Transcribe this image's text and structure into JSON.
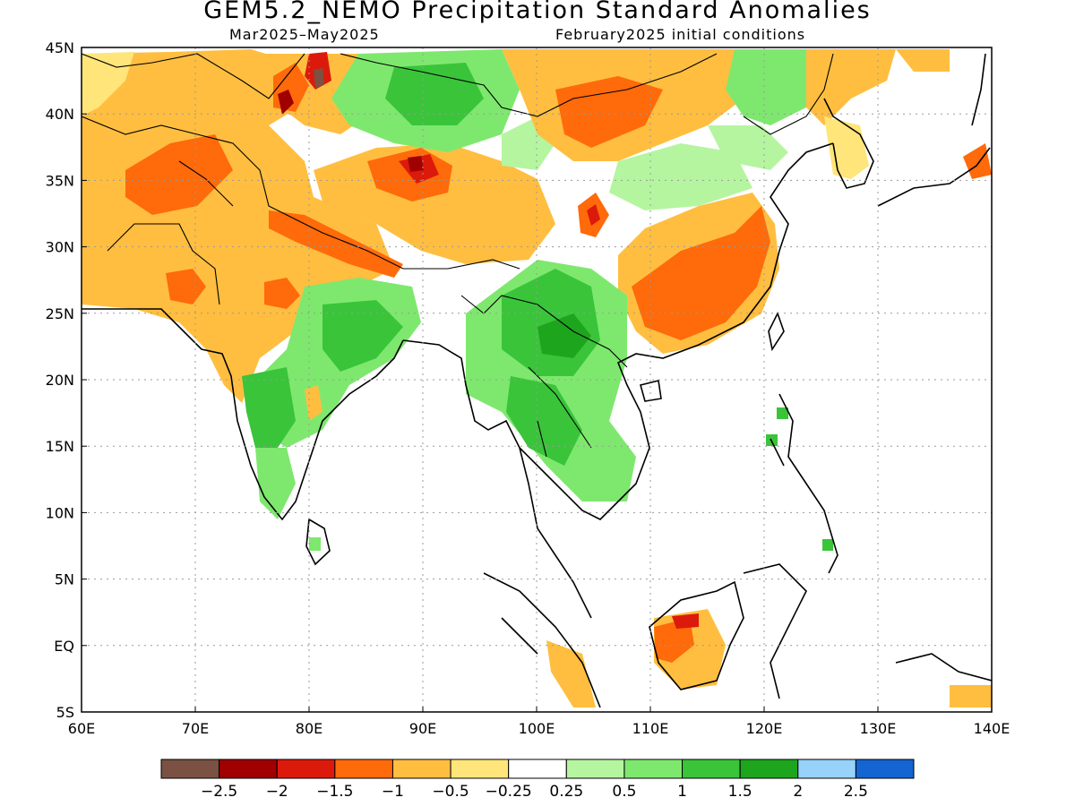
{
  "header": {
    "title": "GEM5.2_NEMO Precipitation Standard Anomalies",
    "period": "Mar2025–May2025",
    "init": "February2025 initial conditions"
  },
  "map": {
    "lon_ticks": [
      "60E",
      "70E",
      "80E",
      "90E",
      "100E",
      "110E",
      "120E",
      "130E",
      "140E"
    ],
    "lat_ticks": [
      "45N",
      "40N",
      "35N",
      "30N",
      "25N",
      "20N",
      "15N",
      "10N",
      "5N",
      "EQ",
      "5S"
    ],
    "grid": true
  },
  "colorbar": {
    "colors": [
      "#7a5142",
      "#a00000",
      "#dc1a0b",
      "#ff6a0a",
      "#ffbe40",
      "#ffe57a",
      "#ffffff",
      "#b5f5a0",
      "#7ee86e",
      "#3ac43a",
      "#1ea51e",
      "#96d2fa",
      "#1464d2"
    ],
    "labels": [
      "−2.5",
      "−2",
      "−1.5",
      "−1",
      "−0.5",
      "−0.25",
      "0.25",
      "0.5",
      "1",
      "1.5",
      "2",
      "2.5"
    ]
  }
}
